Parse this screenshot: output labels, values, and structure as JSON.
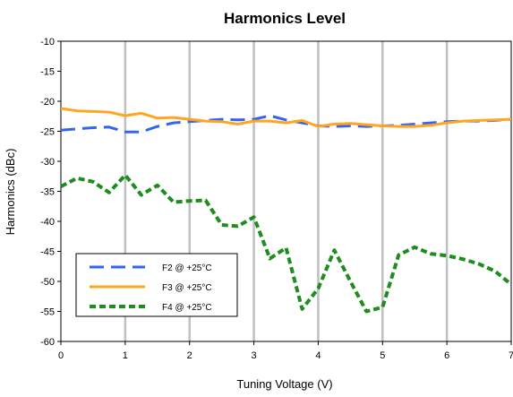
{
  "chart_data": {
    "type": "line",
    "title": "Harmonics Level",
    "xlabel": "Tuning Voltage (V)",
    "ylabel": "Harmonics (dBc)",
    "xlim": [
      0,
      7
    ],
    "ylim": [
      -60,
      -10
    ],
    "xticks": [
      0,
      1,
      2,
      3,
      4,
      5,
      6,
      7
    ],
    "yticks": [
      -10,
      -15,
      -20,
      -25,
      -30,
      -35,
      -40,
      -45,
      -50,
      -55,
      -60
    ],
    "grid": {
      "vertical": true,
      "horizontal": false
    },
    "legend": "bottom-left",
    "series": [
      {
        "name": "F2 @ +25°C",
        "color": "#3366ee",
        "dash": "long-dash",
        "x": [
          0,
          0.25,
          0.5,
          0.75,
          1.0,
          1.25,
          1.5,
          1.75,
          2.0,
          2.25,
          2.5,
          2.75,
          3.0,
          3.25,
          3.5,
          3.75,
          4.0,
          4.25,
          4.5,
          4.75,
          5.0,
          5.25,
          5.5,
          5.75,
          6.0,
          6.25,
          6.5,
          6.75,
          7.0
        ],
        "y": [
          -24.8,
          -24.6,
          -24.4,
          -24.3,
          -25.1,
          -25.1,
          -24.2,
          -23.6,
          -23.4,
          -23.2,
          -23.0,
          -23.1,
          -23.0,
          -22.4,
          -23.1,
          -23.6,
          -24.1,
          -24.2,
          -24.1,
          -24.2,
          -24.1,
          -24.0,
          -23.8,
          -23.6,
          -23.4,
          -23.3,
          -23.3,
          -23.2,
          -23.0
        ]
      },
      {
        "name": "F3 @ +25°C",
        "color": "#ffa522",
        "dash": "solid",
        "x": [
          0,
          0.25,
          0.5,
          0.75,
          1.0,
          1.25,
          1.5,
          1.75,
          2.0,
          2.25,
          2.5,
          2.75,
          3.0,
          3.25,
          3.5,
          3.75,
          4.0,
          4.25,
          4.5,
          4.75,
          5.0,
          5.25,
          5.5,
          5.75,
          6.0,
          6.25,
          6.5,
          6.75,
          7.0
        ],
        "y": [
          -21.2,
          -21.6,
          -21.7,
          -21.8,
          -22.4,
          -22.0,
          -22.8,
          -22.7,
          -23.0,
          -23.3,
          -23.4,
          -23.8,
          -23.3,
          -23.3,
          -23.6,
          -23.2,
          -24.2,
          -23.8,
          -23.7,
          -23.9,
          -24.1,
          -24.2,
          -24.2,
          -24.0,
          -23.6,
          -23.3,
          -23.2,
          -23.1,
          -23.0
        ]
      },
      {
        "name": "F4 @ +25°C",
        "color": "#1e8c1e",
        "dash": "short-dash",
        "x": [
          0,
          0.25,
          0.5,
          0.75,
          1.0,
          1.25,
          1.5,
          1.75,
          2.0,
          2.25,
          2.5,
          2.75,
          3.0,
          3.25,
          3.5,
          3.75,
          4.0,
          4.25,
          4.5,
          4.75,
          5.0,
          5.25,
          5.5,
          5.75,
          6.0,
          6.25,
          6.5,
          6.75,
          7.0
        ],
        "y": [
          -34.2,
          -32.8,
          -33.4,
          -35.2,
          -32.3,
          -35.6,
          -34.0,
          -36.8,
          -36.6,
          -36.5,
          -40.6,
          -40.8,
          -39.3,
          -46.2,
          -44.4,
          -54.6,
          -51.2,
          -44.8,
          -50.0,
          -55.0,
          -54.3,
          -45.6,
          -44.3,
          -45.4,
          -45.7,
          -46.3,
          -47.1,
          -48.3,
          -50.5
        ]
      }
    ]
  }
}
